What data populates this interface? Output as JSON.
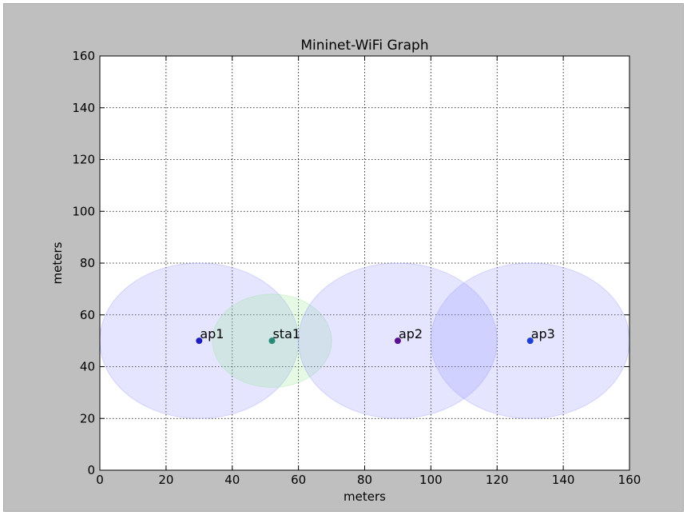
{
  "chart_data": {
    "type": "scatter",
    "title": "Mininet-WiFi Graph",
    "xlabel": "meters",
    "ylabel": "meters",
    "xlim": [
      0,
      160
    ],
    "ylim": [
      0,
      160
    ],
    "xticks": [
      0,
      20,
      40,
      60,
      80,
      100,
      120,
      140,
      160
    ],
    "yticks": [
      0,
      20,
      40,
      60,
      80,
      100,
      120,
      140,
      160
    ],
    "grid": true,
    "nodes": [
      {
        "name": "ap1",
        "x": 30,
        "y": 50,
        "range": 30,
        "color": "#1f1fbf",
        "range_color": "#9999ff"
      },
      {
        "name": "sta1",
        "x": 52,
        "y": 50,
        "range": 18,
        "color": "#2a8a78",
        "range_color": "#99e699"
      },
      {
        "name": "ap2",
        "x": 90,
        "y": 50,
        "range": 30,
        "color": "#5a1090",
        "range_color": "#9999ff"
      },
      {
        "name": "ap3",
        "x": 130,
        "y": 50,
        "range": 30,
        "color": "#1f3fd0",
        "range_color": "#9999ff"
      }
    ]
  }
}
